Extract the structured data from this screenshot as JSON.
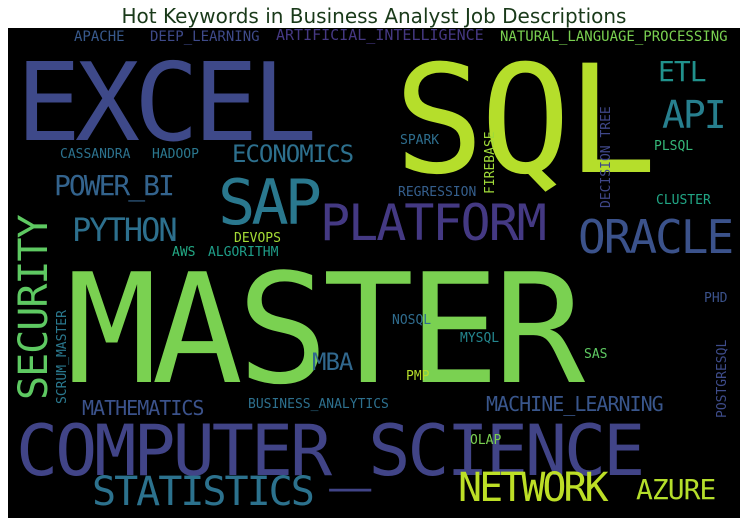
{
  "title": "Hot Keywords in Business Analyst Job Descriptions",
  "words": [
    {
      "text": "SQL",
      "color": "#b5de2b"
    },
    {
      "text": "EXCEL",
      "color": "#3e4989"
    },
    {
      "text": "MASTER",
      "color": "#7ad151"
    },
    {
      "text": "COMPUTER_SCIENCE",
      "color": "#414487"
    },
    {
      "text": "PLATFORM",
      "color": "#443983"
    },
    {
      "text": "SAP",
      "color": "#2a788e"
    },
    {
      "text": "ORACLE",
      "color": "#3b528b"
    },
    {
      "text": "SECURITY",
      "color": "#5ec962"
    },
    {
      "text": "NETWORK",
      "color": "#bddf26"
    },
    {
      "text": "STATISTICS",
      "color": "#2c728e"
    },
    {
      "text": "API",
      "color": "#277f8e"
    },
    {
      "text": "ECONOMICS",
      "color": "#2d708e"
    },
    {
      "text": "POWER_BI",
      "color": "#33638d"
    },
    {
      "text": "PYTHON",
      "color": "#2d708e"
    },
    {
      "text": "ETL",
      "color": "#21918c"
    },
    {
      "text": "AZURE",
      "color": "#b5de2b"
    },
    {
      "text": "MATHEMATICS",
      "color": "#3b528b"
    },
    {
      "text": "MACHINE_LEARNING",
      "color": "#39568c"
    },
    {
      "text": "MBA",
      "color": "#31688e"
    },
    {
      "text": "APACHE",
      "color": "#38598c"
    },
    {
      "text": "DEEP_LEARNING",
      "color": "#3e4a89"
    },
    {
      "text": "ARTIFICIAL_INTELLIGENCE",
      "color": "#453882"
    },
    {
      "text": "NATURAL_LANGUAGE_PROCESSING",
      "color": "#7ad151"
    },
    {
      "text": "CASSANDRA",
      "color": "#2c728e"
    },
    {
      "text": "HADOOP",
      "color": "#2a778e"
    },
    {
      "text": "SPARK",
      "color": "#2e6e8e"
    },
    {
      "text": "FIREBASE",
      "color": "#a0da39"
    },
    {
      "text": "DECISION TREE",
      "color": "#3f4788"
    },
    {
      "text": "PLSQL",
      "color": "#35b779"
    },
    {
      "text": "REGRESSION",
      "color": "#355f8d"
    },
    {
      "text": "CLUSTER",
      "color": "#21a685"
    },
    {
      "text": "DEVOPS",
      "color": "#a5db36"
    },
    {
      "text": "AWS",
      "color": "#22a884"
    },
    {
      "text": "ALGORITHM",
      "color": "#1f9e89"
    },
    {
      "text": "SCRUM_MASTER",
      "color": "#2a788e"
    },
    {
      "text": "NOSQL",
      "color": "#2f6c8e"
    },
    {
      "text": "MYSQL",
      "color": "#24868e"
    },
    {
      "text": "PHD",
      "color": "#3b528b"
    },
    {
      "text": "POSTGRESQL",
      "color": "#3e4c8a"
    },
    {
      "text": "SAS",
      "color": "#5ec962"
    },
    {
      "text": "PMP",
      "color": "#b5de2b"
    },
    {
      "text": "BUSINESS_ANALYTICS",
      "color": "#2d708e"
    },
    {
      "text": "OLAP",
      "color": "#7ad151"
    }
  ]
}
